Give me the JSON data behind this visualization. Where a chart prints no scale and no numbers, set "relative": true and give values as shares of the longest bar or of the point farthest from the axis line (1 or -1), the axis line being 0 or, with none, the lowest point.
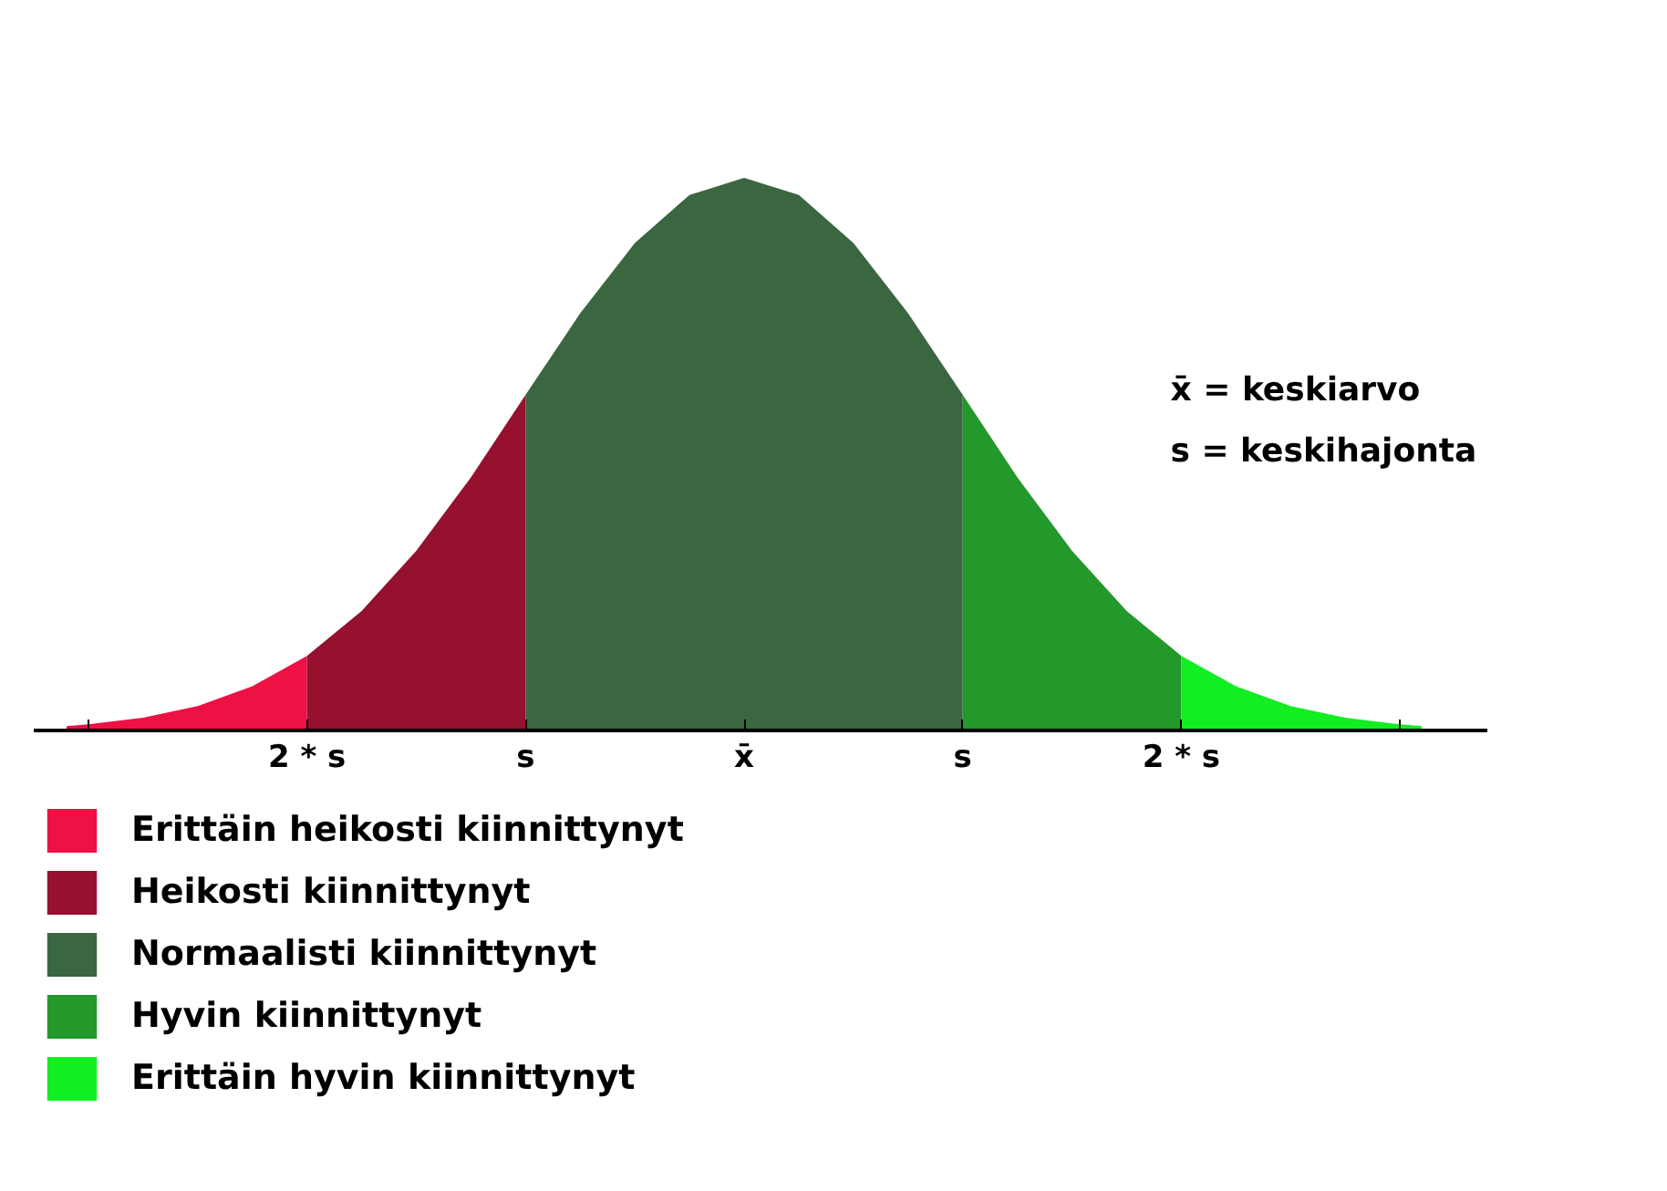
{
  "chart_data": {
    "type": "area",
    "relative": true,
    "grid": false,
    "legend": "bottom left",
    "xlim": [
      -3.25,
      3.4
    ],
    "xticks": [
      {
        "value": -3,
        "label": null
      },
      {
        "value": -2,
        "label": "2 * s"
      },
      {
        "value": -1,
        "label": "s"
      },
      {
        "value": 0,
        "label": "x̄"
      },
      {
        "value": 1,
        "label": "s"
      },
      {
        "value": 2,
        "label": "2 * s"
      },
      {
        "value": 3,
        "label": null
      }
    ],
    "tick_labels": "x",
    "annotations": [
      {
        "text": "x̄ = keskiarvo"
      },
      {
        "text": "s = keskihajonta"
      }
    ],
    "series": [
      {
        "name": "Erittäin heikosti kiinnittynyt",
        "color": "#ee1144",
        "x": [
          -3.1,
          -3,
          -2.75,
          -2.5,
          -2.25,
          -2
        ],
        "values": [
          0.008,
          0.011,
          0.023,
          0.044,
          0.08,
          0.135
        ]
      },
      {
        "name": "Heikosti kiinnittynyt",
        "color": "#961030",
        "x": [
          -2,
          -1.75,
          -1.5,
          -1.25,
          -1
        ],
        "values": [
          0.135,
          0.216,
          0.325,
          0.458,
          0.607
        ]
      },
      {
        "name": "Normaalisti kiinnittynyt",
        "color": "#3a6640",
        "x": [
          -1,
          -0.75,
          -0.5,
          -0.25,
          0,
          0.25,
          0.5,
          0.75,
          1
        ],
        "values": [
          0.607,
          0.755,
          0.882,
          0.969,
          1,
          0.969,
          0.882,
          0.755,
          0.607
        ]
      },
      {
        "name": "Hyvin kiinnittynyt",
        "color": "#22992a",
        "x": [
          1,
          1.25,
          1.5,
          1.75,
          2
        ],
        "values": [
          0.607,
          0.458,
          0.325,
          0.216,
          0.135
        ]
      },
      {
        "name": "Erittäin hyvin kiinnittynyt",
        "color": "#11ee22",
        "x": [
          2,
          2.25,
          2.5,
          2.75,
          3,
          3.1
        ],
        "values": [
          0.135,
          0.08,
          0.044,
          0.023,
          0.011,
          0.008
        ]
      }
    ]
  }
}
